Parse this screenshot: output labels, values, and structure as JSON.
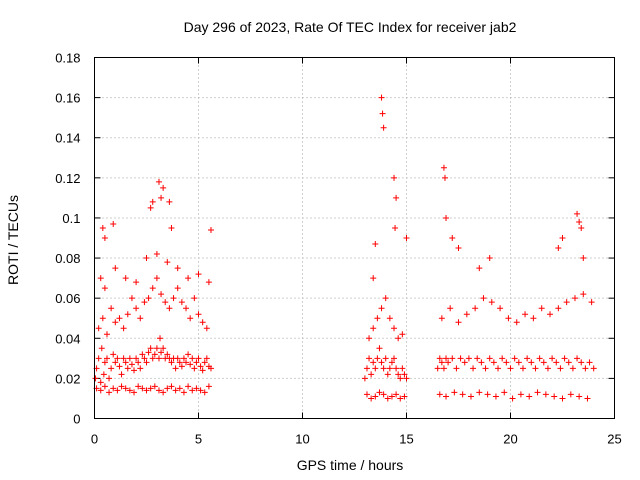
{
  "chart_data": {
    "type": "scatter",
    "title": "Day 296 of 2023, Rate Of TEC Index for receiver jab2",
    "xlabel": "GPS time / hours",
    "ylabel": "ROTI / TECUs",
    "xlim": [
      0,
      25
    ],
    "ylim": [
      0,
      0.18
    ],
    "xticks": [
      "0",
      "5",
      "10",
      "15",
      "20",
      "25"
    ],
    "yticks": [
      "0",
      "0.02",
      "0.04",
      "0.06",
      "0.08",
      "0.1",
      "0.12",
      "0.14",
      "0.16",
      "0.18"
    ],
    "grid": true,
    "marker": "+",
    "color": "#ff0000",
    "series": [
      {
        "x": [
          0.05,
          0.1,
          0.2,
          0.3,
          0.35,
          0.45,
          0.5,
          0.6,
          0.7,
          0.8,
          0.9,
          1.0,
          1.1,
          1.2,
          1.3,
          1.4,
          1.5,
          1.6,
          1.7,
          1.8,
          1.9,
          2.0,
          2.1,
          2.2,
          2.3,
          2.4,
          2.5,
          2.6,
          2.7,
          2.8,
          2.9,
          3.0,
          3.1,
          3.15,
          3.2,
          3.3,
          3.4,
          3.5,
          3.6,
          3.7,
          3.8,
          3.9,
          4.0,
          4.1,
          4.2,
          4.3,
          4.4,
          4.5,
          4.6,
          4.7,
          4.8,
          4.9,
          5.0,
          5.1,
          5.2,
          5.3,
          5.4,
          5.5,
          5.6,
          0.1,
          0.3,
          0.5,
          0.7,
          0.9,
          1.1,
          1.3,
          1.5,
          1.7,
          1.9,
          2.1,
          2.3,
          2.5,
          2.7,
          2.9,
          3.1,
          3.3,
          3.5,
          3.7,
          3.9,
          4.1,
          4.3,
          4.5,
          4.7,
          4.9,
          5.1,
          5.3,
          5.5,
          0.2,
          0.4,
          0.6,
          0.8,
          1.0,
          1.2,
          1.4,
          1.6,
          1.8,
          2.0,
          2.2,
          2.4,
          2.6,
          2.8,
          3.0,
          3.2,
          3.4,
          3.6,
          3.8,
          4.0,
          4.2,
          4.4,
          4.6,
          4.8,
          5.0,
          5.2,
          5.4,
          0.3,
          0.5,
          1.0,
          1.5,
          2.0,
          2.5,
          3.0,
          3.5,
          4.0,
          4.5,
          5.0,
          5.5,
          2.7,
          2.8,
          3.1,
          3.2,
          3.3,
          3.6,
          3.7,
          0.4,
          0.9,
          0.5,
          5.6,
          13.0,
          13.1,
          13.2,
          13.3,
          13.4,
          13.5,
          13.6,
          13.7,
          13.8,
          13.9,
          14.0,
          14.1,
          14.2,
          14.3,
          14.4,
          14.5,
          14.6,
          14.7,
          14.8,
          14.9,
          15.0,
          13.1,
          13.3,
          13.5,
          13.7,
          13.9,
          14.1,
          14.3,
          14.5,
          14.7,
          14.9,
          13.2,
          13.4,
          13.6,
          13.8,
          14.0,
          14.2,
          14.4,
          14.6,
          14.8,
          13.8,
          13.85,
          13.9,
          14.4,
          14.5,
          14.45,
          15.0,
          13.5,
          13.4,
          16.5,
          16.6,
          16.7,
          16.8,
          16.9,
          17.0,
          17.2,
          17.4,
          17.6,
          17.8,
          18.0,
          18.2,
          18.4,
          18.6,
          18.8,
          19.0,
          19.2,
          19.4,
          19.6,
          19.8,
          20.0,
          20.2,
          20.4,
          20.6,
          20.8,
          21.0,
          21.2,
          21.4,
          21.6,
          21.8,
          22.0,
          22.2,
          22.4,
          22.6,
          22.8,
          23.0,
          23.2,
          23.4,
          23.6,
          23.8,
          24.0,
          16.6,
          16.9,
          17.3,
          17.7,
          18.1,
          18.5,
          18.9,
          19.3,
          19.7,
          20.1,
          20.5,
          20.9,
          21.3,
          21.7,
          22.1,
          22.5,
          22.9,
          23.3,
          23.7,
          16.7,
          17.1,
          17.5,
          17.9,
          18.3,
          18.7,
          19.1,
          19.5,
          19.9,
          20.3,
          20.7,
          21.1,
          21.5,
          21.9,
          22.3,
          22.7,
          23.1,
          23.5,
          23.9,
          16.8,
          16.85,
          16.9,
          17.2,
          17.5,
          18.5,
          19.0,
          22.3,
          22.5,
          23.2,
          23.3,
          23.4,
          23.5
        ],
        "y": [
          0.02,
          0.025,
          0.03,
          0.018,
          0.035,
          0.022,
          0.028,
          0.03,
          0.02,
          0.025,
          0.032,
          0.028,
          0.03,
          0.026,
          0.022,
          0.03,
          0.028,
          0.025,
          0.03,
          0.027,
          0.024,
          0.03,
          0.028,
          0.025,
          0.032,
          0.03,
          0.028,
          0.033,
          0.035,
          0.03,
          0.032,
          0.035,
          0.03,
          0.04,
          0.033,
          0.035,
          0.03,
          0.032,
          0.03,
          0.028,
          0.03,
          0.025,
          0.03,
          0.028,
          0.026,
          0.03,
          0.028,
          0.032,
          0.027,
          0.03,
          0.025,
          0.028,
          0.03,
          0.026,
          0.024,
          0.028,
          0.03,
          0.026,
          0.025,
          0.015,
          0.014,
          0.016,
          0.013,
          0.015,
          0.014,
          0.016,
          0.015,
          0.014,
          0.013,
          0.016,
          0.015,
          0.014,
          0.015,
          0.016,
          0.014,
          0.013,
          0.015,
          0.016,
          0.014,
          0.015,
          0.013,
          0.016,
          0.014,
          0.015,
          0.014,
          0.013,
          0.016,
          0.045,
          0.05,
          0.042,
          0.055,
          0.048,
          0.05,
          0.045,
          0.052,
          0.06,
          0.055,
          0.05,
          0.058,
          0.06,
          0.065,
          0.07,
          0.062,
          0.058,
          0.055,
          0.06,
          0.065,
          0.058,
          0.055,
          0.05,
          0.06,
          0.052,
          0.048,
          0.045,
          0.07,
          0.065,
          0.075,
          0.07,
          0.068,
          0.08,
          0.082,
          0.078,
          0.075,
          0.07,
          0.072,
          0.068,
          0.105,
          0.108,
          0.118,
          0.11,
          0.115,
          0.108,
          0.095,
          0.095,
          0.097,
          0.09,
          0.094,
          0.02,
          0.025,
          0.03,
          0.022,
          0.028,
          0.025,
          0.03,
          0.035,
          0.028,
          0.025,
          0.03,
          0.022,
          0.025,
          0.028,
          0.03,
          0.025,
          0.022,
          0.02,
          0.025,
          0.022,
          0.02,
          0.012,
          0.01,
          0.011,
          0.013,
          0.012,
          0.01,
          0.011,
          0.012,
          0.01,
          0.011,
          0.04,
          0.045,
          0.05,
          0.055,
          0.06,
          0.05,
          0.045,
          0.04,
          0.042,
          0.16,
          0.152,
          0.145,
          0.12,
          0.11,
          0.095,
          0.09,
          0.087,
          0.07,
          0.025,
          0.03,
          0.028,
          0.025,
          0.03,
          0.028,
          0.03,
          0.025,
          0.03,
          0.028,
          0.03,
          0.025,
          0.03,
          0.028,
          0.025,
          0.03,
          0.028,
          0.025,
          0.03,
          0.028,
          0.025,
          0.03,
          0.028,
          0.025,
          0.03,
          0.028,
          0.025,
          0.03,
          0.028,
          0.025,
          0.03,
          0.028,
          0.025,
          0.03,
          0.028,
          0.025,
          0.03,
          0.028,
          0.025,
          0.028,
          0.025,
          0.012,
          0.011,
          0.013,
          0.012,
          0.011,
          0.013,
          0.012,
          0.011,
          0.013,
          0.01,
          0.012,
          0.011,
          0.013,
          0.012,
          0.011,
          0.01,
          0.012,
          0.011,
          0.01,
          0.05,
          0.055,
          0.048,
          0.052,
          0.055,
          0.06,
          0.058,
          0.055,
          0.05,
          0.048,
          0.052,
          0.05,
          0.055,
          0.052,
          0.055,
          0.058,
          0.06,
          0.062,
          0.058,
          0.125,
          0.12,
          0.1,
          0.09,
          0.085,
          0.075,
          0.08,
          0.085,
          0.09,
          0.102,
          0.098,
          0.095,
          0.08
        ]
      }
    ]
  }
}
